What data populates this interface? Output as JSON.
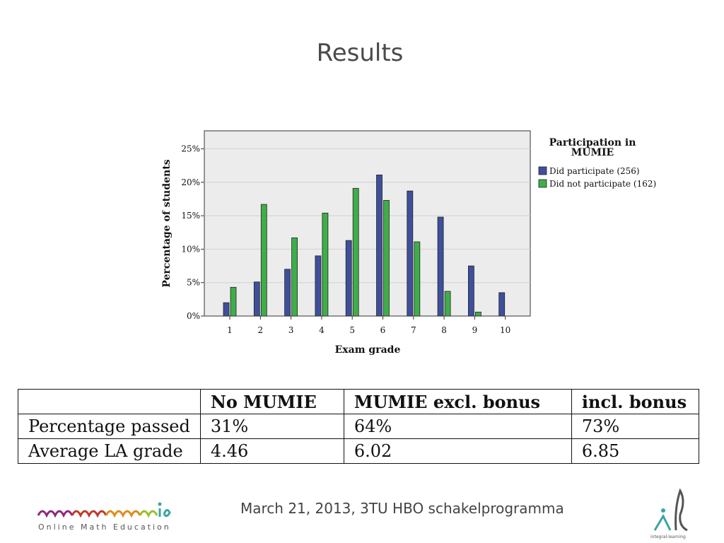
{
  "title": "Results",
  "chart_data": {
    "type": "bar",
    "xlabel": "Exam grade",
    "ylabel": "Percentage of students",
    "categories": [
      "1",
      "2",
      "3",
      "4",
      "5",
      "6",
      "7",
      "8",
      "9",
      "10"
    ],
    "yticks": [
      "0%",
      "5%",
      "10%",
      "15%",
      "20%",
      "25%"
    ],
    "ylim": [
      0,
      27.7
    ],
    "grid": true,
    "legend_title": "Participation in MUMIE",
    "legend_placement": "top-right outside",
    "series": [
      {
        "name": "Did participate (256)",
        "color": "#3f4f9c",
        "values": [
          2.0,
          5.1,
          7.0,
          9.0,
          11.3,
          21.1,
          18.7,
          14.8,
          7.5,
          3.5
        ]
      },
      {
        "name": "Did not participate (162)",
        "color": "#3fae49",
        "values": [
          4.3,
          16.7,
          11.7,
          15.4,
          19.1,
          17.3,
          11.1,
          3.7,
          0.6,
          null
        ]
      }
    ]
  },
  "table": {
    "headers": [
      "",
      "No MUMIE",
      "MUMIE excl. bonus",
      "incl. bonus"
    ],
    "rows": [
      [
        "Percentage passed",
        "31%",
        "64%",
        "73%"
      ],
      [
        "Average LA grade",
        "4.46",
        "6.02",
        "6.85"
      ]
    ]
  },
  "footer": {
    "text": "March 21, 2013, 3TU HBO schakelprogramma",
    "left_logo_tagline": "Online Math Education",
    "right_logo_tagline": "integral-learning"
  }
}
